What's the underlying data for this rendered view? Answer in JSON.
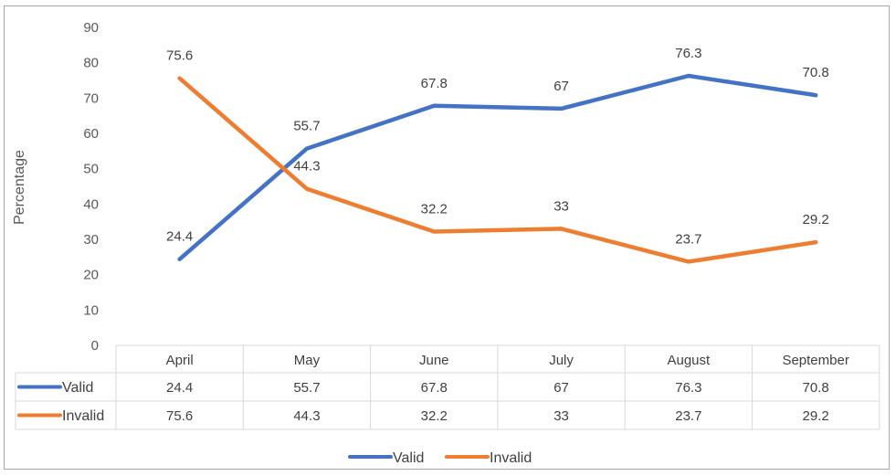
{
  "chart_data": {
    "type": "line",
    "title": "",
    "ylabel": "Percentage",
    "xlabel": "",
    "ylim": [
      0,
      90
    ],
    "y_ticks": [
      "0",
      "10",
      "20",
      "30",
      "40",
      "50",
      "60",
      "70",
      "80",
      "90"
    ],
    "categories": [
      "April",
      "May",
      "June",
      "July",
      "August",
      "September"
    ],
    "grid": false,
    "legend_position": "bottom",
    "data_table": true,
    "series": [
      {
        "name": "Valid",
        "color": "#4472c4",
        "values": [
          24.4,
          55.7,
          67.8,
          67,
          76.3,
          70.8
        ],
        "labels": [
          "24.4",
          "55.7",
          "67.8",
          "67",
          "76.3",
          "70.8"
        ]
      },
      {
        "name": "Invalid",
        "color": "#ed7d31",
        "values": [
          75.6,
          44.3,
          32.2,
          33,
          23.7,
          29.2
        ],
        "labels": [
          "75.6",
          "44.3",
          "32.2",
          "33",
          "23.7",
          "29.2"
        ]
      }
    ]
  }
}
